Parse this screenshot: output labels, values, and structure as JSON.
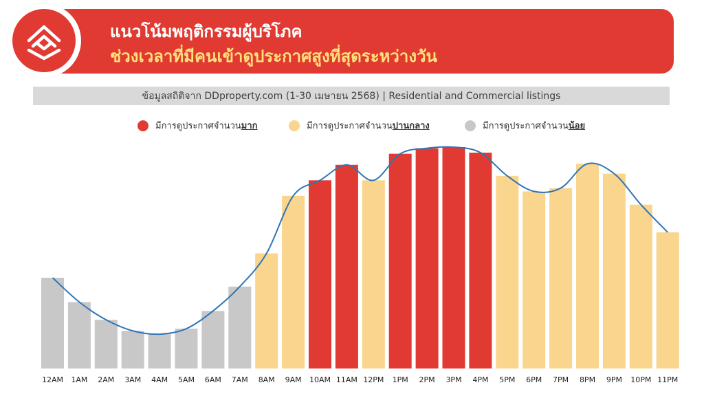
{
  "header": {
    "title_line1": "แนวโน้มพฤติกรรมผู้บริโภค",
    "title_line2": "ช่วงเวลาที่มีคนเข้าดูประกาศสูงที่สุดระหว่างวัน",
    "colors": {
      "bar": "#E03A32",
      "title_line2": "#FFE17A",
      "logo_bg": "#E03A32"
    }
  },
  "subtitle": "ข้อมูลสถิติจาก DDproperty.com (1-30 เมษายน 2568) | Residential and Commercial listings",
  "legend": [
    {
      "prefix": "มีการดูประกาศจำนวน",
      "emphasis": "มาก",
      "color": "#E03A32"
    },
    {
      "prefix": "มีการดูประกาศจำนวน",
      "emphasis": "ปานกลาง",
      "color": "#F9D58E"
    },
    {
      "prefix": "มีการดูประกาศจำนวน",
      "emphasis": "น้อย",
      "color": "#C8C8C8"
    }
  ],
  "chart_data": {
    "type": "bar",
    "categories": [
      "12AM",
      "1AM",
      "2AM",
      "3AM",
      "4AM",
      "5AM",
      "6AM",
      "7AM",
      "8AM",
      "9AM",
      "10AM",
      "11AM",
      "12PM",
      "1PM",
      "2PM",
      "3PM",
      "4PM",
      "5PM",
      "6PM",
      "7PM",
      "8PM",
      "9PM",
      "10PM",
      "11PM"
    ],
    "values": [
      41,
      30,
      22,
      17,
      15.5,
      18,
      26,
      37,
      52,
      78,
      85,
      92,
      85,
      97,
      99.5,
      100,
      97.5,
      87,
      80,
      81.5,
      92.5,
      88,
      74,
      61.5
    ],
    "levels": [
      "low",
      "low",
      "low",
      "low",
      "low",
      "low",
      "low",
      "low",
      "mid",
      "mid",
      "high",
      "high",
      "mid",
      "high",
      "high",
      "high",
      "high",
      "mid",
      "mid",
      "mid",
      "mid",
      "mid",
      "mid",
      "mid"
    ],
    "level_colors": {
      "high": "#E03A32",
      "mid": "#F9D58E",
      "low": "#C8C8C8"
    },
    "trend_line_color": "#2E75B6",
    "ylim": [
      0,
      100
    ],
    "grid": false
  }
}
